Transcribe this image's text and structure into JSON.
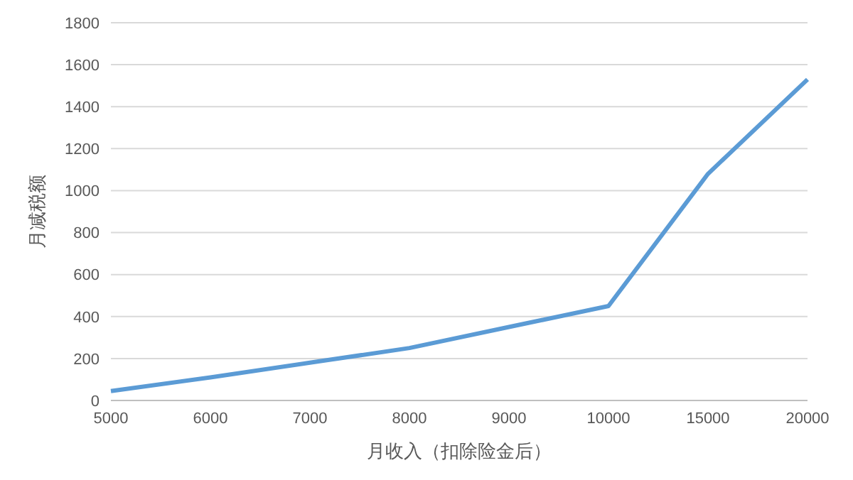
{
  "chart_data": {
    "type": "line",
    "xlabel": "月收入（扣除险金后）",
    "ylabel": "月减税额",
    "categories": [
      "5000",
      "6000",
      "7000",
      "8000",
      "9000",
      "10000",
      "15000",
      "20000"
    ],
    "series": [
      {
        "color": "#5b9bd5",
        "values": [
          45,
          110,
          180,
          250,
          350,
          450,
          1080,
          1530
        ]
      }
    ],
    "ylim": [
      0,
      1800
    ],
    "yticks": [
      0,
      200,
      400,
      600,
      800,
      1000,
      1200,
      1400,
      1600,
      1800
    ],
    "grid": "y",
    "legend": false,
    "marker": "none",
    "line_style": "solid"
  }
}
